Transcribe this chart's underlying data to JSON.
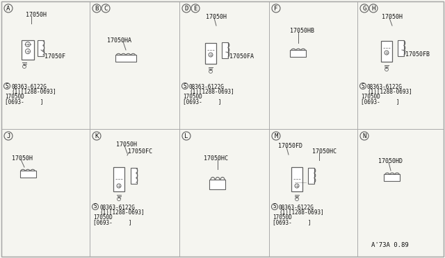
{
  "bg_color": "#f5f5f0",
  "line_color": "#606060",
  "text_color": "#101010",
  "col_edges": [
    2,
    129,
    258,
    387,
    514,
    638
  ],
  "row_edges": [
    2,
    186,
    370
  ],
  "footer": "A'73A 0.89"
}
